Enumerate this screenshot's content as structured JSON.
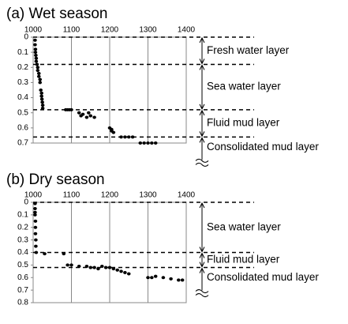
{
  "chart_data": [
    {
      "type": "scatter",
      "title": "(a) Wet season",
      "x": [
        1005,
        1005,
        1006,
        1006,
        1007,
        1008,
        1008,
        1010,
        1012,
        1012,
        1015,
        1015,
        1018,
        1018,
        1020,
        1022,
        1022,
        1023,
        1024,
        1025,
        1025,
        1085,
        1090,
        1095,
        1100,
        1120,
        1125,
        1130,
        1140,
        1145,
        1150,
        1160,
        1200,
        1205,
        1210,
        1205,
        1230,
        1240,
        1250,
        1260,
        1280,
        1290,
        1300,
        1310,
        1320
      ],
      "values": [
        0.02,
        0.05,
        0.08,
        0.1,
        0.12,
        0.14,
        0.16,
        0.18,
        0.2,
        0.22,
        0.24,
        0.26,
        0.28,
        0.3,
        0.35,
        0.37,
        0.39,
        0.41,
        0.43,
        0.45,
        0.47,
        0.48,
        0.48,
        0.48,
        0.48,
        0.5,
        0.52,
        0.51,
        0.53,
        0.5,
        0.52,
        0.53,
        0.6,
        0.62,
        0.63,
        0.61,
        0.66,
        0.66,
        0.66,
        0.66,
        0.7,
        0.7,
        0.7,
        0.7,
        0.7
      ],
      "color": "#000000",
      "xlim": [
        1000,
        1400
      ],
      "xticks": [
        1000,
        1100,
        1200,
        1300,
        1400
      ],
      "ylim": [
        0,
        0.7
      ],
      "yticks": [
        0,
        0.1,
        0.2,
        0.3,
        0.4,
        0.5,
        0.6,
        0.7
      ],
      "y_inverted": true,
      "grid": true,
      "boundaries": [
        0,
        0.18,
        0.48,
        0.66
      ],
      "layers": [
        "Fresh water layer",
        "Sea water layer",
        "Fluid mud layer",
        "Consolidated mud layer"
      ]
    },
    {
      "type": "scatter",
      "title": "(b) Dry season",
      "x": [
        1005,
        1005,
        1005,
        1005,
        1006,
        1006,
        1006,
        1007,
        1007,
        1008,
        1030,
        1080,
        1090,
        1100,
        1120,
        1140,
        1150,
        1160,
        1170,
        1180,
        1190,
        1200,
        1210,
        1220,
        1230,
        1240,
        1250,
        1300,
        1310,
        1320,
        1340,
        1360,
        1380,
        1390
      ],
      "values": [
        0.01,
        0.05,
        0.08,
        0.1,
        0.15,
        0.2,
        0.25,
        0.3,
        0.35,
        0.4,
        0.41,
        0.41,
        0.5,
        0.5,
        0.51,
        0.51,
        0.52,
        0.52,
        0.53,
        0.51,
        0.52,
        0.52,
        0.53,
        0.54,
        0.55,
        0.56,
        0.57,
        0.6,
        0.6,
        0.59,
        0.6,
        0.61,
        0.62,
        0.62
      ],
      "color": "#000000",
      "xlim": [
        1000,
        1400
      ],
      "xticks": [
        1000,
        1100,
        1200,
        1300,
        1400
      ],
      "ylim": [
        0,
        0.8
      ],
      "yticks": [
        0,
        0.1,
        0.2,
        0.3,
        0.4,
        0.5,
        0.6,
        0.7,
        0.8
      ],
      "y_inverted": true,
      "grid": true,
      "boundaries": [
        0,
        0.4,
        0.52
      ],
      "layers": [
        "Sea water layer",
        "Fluid mud layer",
        "Consolidated mud layer"
      ]
    }
  ]
}
